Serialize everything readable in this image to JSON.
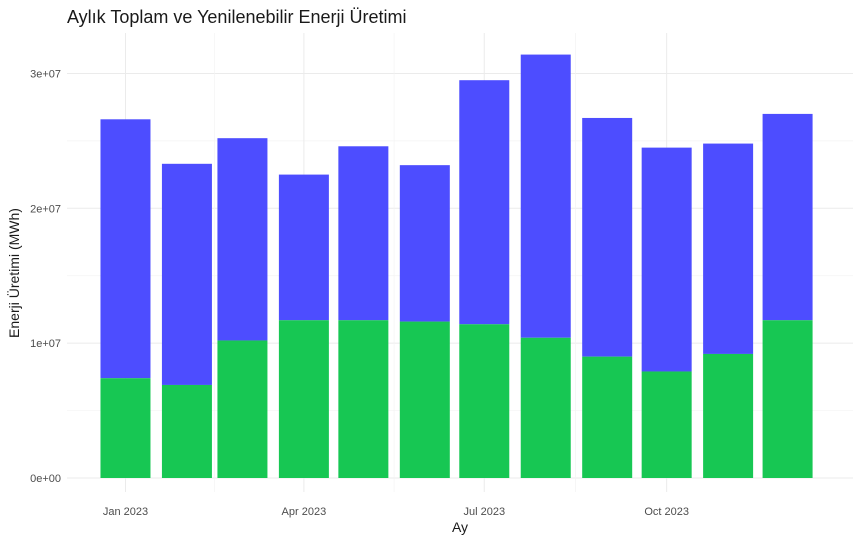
{
  "chart_data": {
    "type": "bar",
    "stacked": true,
    "title": "Aylık Toplam ve Yenilenebilir Enerji Üretimi",
    "xlabel": "Ay",
    "ylabel": "Enerji Üretimi (MWh)",
    "x_tick_labels": [
      "Jan 2023",
      "Apr 2023",
      "Jul 2023",
      "Oct 2023"
    ],
    "x_tick_months": [
      "2023-01",
      "2023-04",
      "2023-07",
      "2023-10"
    ],
    "y_tick_labels": [
      "0e+00",
      "1e+07",
      "2e+07",
      "3e+07"
    ],
    "y_tick_values": [
      0,
      10000000,
      20000000,
      30000000
    ],
    "ylim": [
      0,
      33000000
    ],
    "grid": true,
    "legend": "none",
    "months": [
      "2023-01",
      "2023-02",
      "2023-03",
      "2023-04",
      "2023-05",
      "2023-06",
      "2023-07",
      "2023-08",
      "2023-09",
      "2023-10",
      "2023-11",
      "2023-12"
    ],
    "series": [
      {
        "color": "#17c753",
        "values": [
          7400000,
          6900000,
          10200000,
          11700000,
          11700000,
          11600000,
          11400000,
          10400000,
          9000000,
          7900000,
          9200000,
          11700000
        ]
      },
      {
        "color": "#4d4dff",
        "total_values": [
          26600000,
          23300000,
          25200000,
          22500000,
          24600000,
          23200000,
          29500000,
          31400000,
          26700000,
          24500000,
          24800000,
          27000000
        ]
      }
    ]
  }
}
